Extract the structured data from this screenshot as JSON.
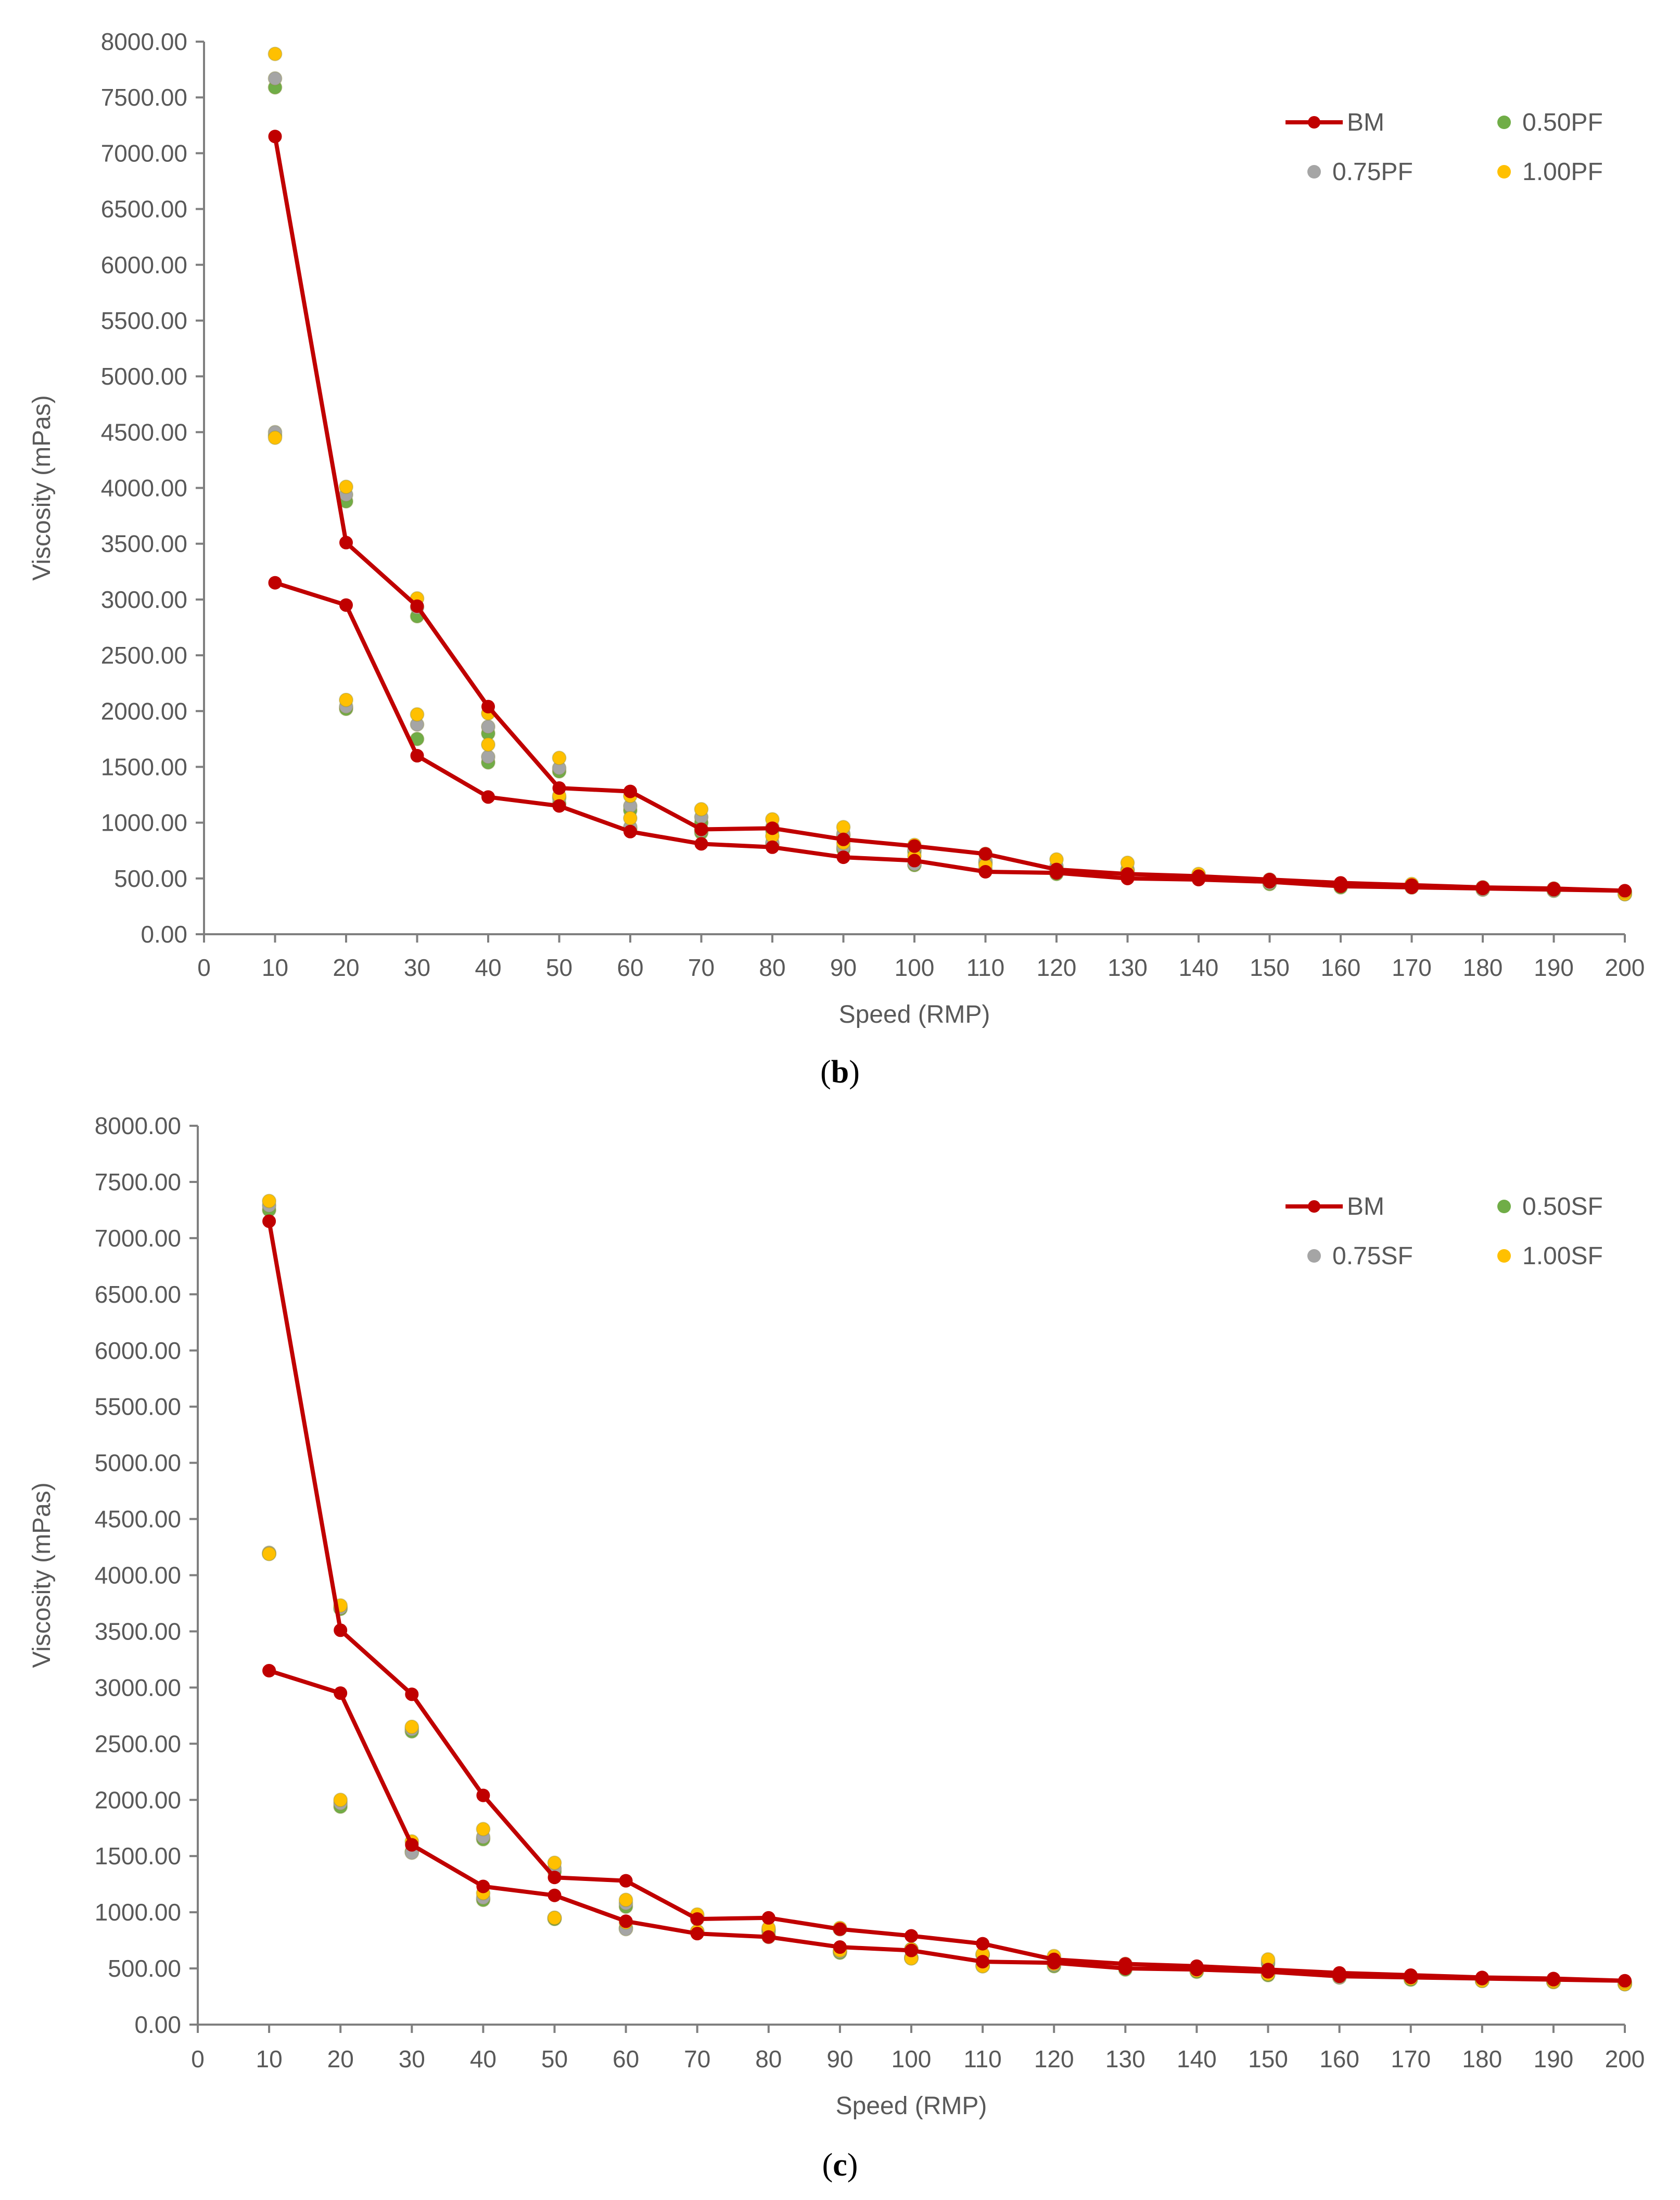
{
  "chart_data": [
    {
      "type": "line",
      "caption_label": "b",
      "title": "",
      "xlabel": "Speed (RMP)",
      "ylabel": "Viscosity (mPas)",
      "xlim": [
        0,
        200
      ],
      "ylim": [
        0,
        8000
      ],
      "x_ticks": [
        "0",
        "10",
        "20",
        "30",
        "40",
        "50",
        "60",
        "70",
        "80",
        "90",
        "100",
        "110",
        "120",
        "130",
        "140",
        "150",
        "160",
        "170",
        "180",
        "190",
        "200"
      ],
      "y_ticks": [
        "0.00",
        "500.00",
        "1000.00",
        "1500.00",
        "2000.00",
        "2500.00",
        "3000.00",
        "3500.00",
        "4000.00",
        "4500.00",
        "5000.00",
        "5500.00",
        "6000.00",
        "6500.00",
        "7000.00",
        "7500.00",
        "8000.00"
      ],
      "legend": [
        "BM",
        "0.50PF",
        "0.75PF",
        "1.00PF"
      ],
      "colors": {
        "BM": "#c00000",
        "0.50PF": "#70ad47",
        "0.75PF": "#a5a5a5",
        "1.00PF": "#ffc000"
      },
      "series": [
        {
          "name": "BM",
          "style": "line",
          "x": [
            10,
            20,
            30,
            40,
            50,
            60,
            70,
            80,
            90,
            100,
            110,
            120,
            130,
            140,
            150,
            160,
            170,
            180,
            190,
            200,
            190,
            180,
            170,
            160,
            150,
            140,
            130,
            120,
            110,
            100,
            90,
            80,
            70,
            60,
            50,
            40,
            30,
            20,
            10
          ],
          "values": [
            7150,
            3510,
            2940,
            2040,
            1310,
            1280,
            940,
            950,
            850,
            790,
            720,
            580,
            540,
            520,
            490,
            460,
            440,
            420,
            410,
            390,
            400,
            410,
            420,
            430,
            470,
            490,
            500,
            550,
            560,
            660,
            690,
            780,
            810,
            920,
            1150,
            1230,
            1600,
            2950,
            3150
          ]
        },
        {
          "name": "0.50PF",
          "style": "marker",
          "x": [
            10,
            10,
            20,
            20,
            30,
            30,
            40,
            40,
            50,
            50,
            60,
            60,
            70,
            70,
            80,
            80,
            90,
            90,
            100,
            100,
            110,
            110,
            120,
            120,
            130,
            130,
            140,
            140,
            150,
            150,
            160,
            160,
            170,
            170,
            180,
            180,
            190,
            190,
            200,
            200
          ],
          "values": [
            7590,
            4470,
            3880,
            2020,
            2850,
            1750,
            1540,
            1800,
            1170,
            1460,
            940,
            1110,
            910,
            1000,
            800,
            930,
            760,
            880,
            620,
            740,
            570,
            640,
            540,
            590,
            520,
            570,
            500,
            520,
            450,
            470,
            420,
            440,
            420,
            440,
            400,
            410,
            390,
            400,
            360,
            380
          ]
        },
        {
          "name": "0.75PF",
          "style": "marker",
          "x": [
            10,
            10,
            20,
            20,
            30,
            30,
            40,
            40,
            50,
            50,
            60,
            60,
            70,
            70,
            80,
            80,
            90,
            90,
            100,
            100,
            110,
            110,
            120,
            120,
            130,
            130,
            140,
            140,
            150,
            150,
            160,
            160,
            170,
            170,
            180,
            180,
            190,
            190,
            200,
            200
          ],
          "values": [
            7670,
            4500,
            3940,
            2040,
            2930,
            1880,
            1590,
            1860,
            1220,
            1490,
            960,
            1150,
            930,
            1050,
            820,
            960,
            780,
            900,
            630,
            760,
            580,
            660,
            550,
            610,
            530,
            580,
            510,
            530,
            460,
            480,
            430,
            450,
            420,
            440,
            400,
            420,
            390,
            400,
            360,
            380
          ]
        },
        {
          "name": "1.00PF",
          "style": "marker",
          "x": [
            10,
            10,
            20,
            20,
            30,
            30,
            40,
            40,
            50,
            50,
            60,
            60,
            70,
            70,
            80,
            80,
            90,
            90,
            100,
            100,
            110,
            110,
            120,
            120,
            130,
            130,
            140,
            140,
            150,
            150,
            160,
            160,
            170,
            170,
            180,
            180,
            190,
            190,
            200,
            200
          ],
          "values": [
            7890,
            4450,
            4010,
            2100,
            3010,
            1970,
            1700,
            1980,
            1240,
            1580,
            1040,
            1240,
            940,
            1120,
            880,
            1030,
            820,
            960,
            700,
            800,
            620,
            720,
            580,
            670,
            560,
            640,
            510,
            540,
            480,
            490,
            440,
            450,
            430,
            450,
            420,
            410,
            400,
            410,
            360,
            380
          ]
        }
      ]
    },
    {
      "type": "line",
      "caption_label": "c",
      "title": "",
      "xlabel": "Speed (RMP)",
      "ylabel": "Viscosity (mPas)",
      "xlim": [
        0,
        200
      ],
      "ylim": [
        0,
        8000
      ],
      "x_ticks": [
        "0",
        "10",
        "20",
        "30",
        "40",
        "50",
        "60",
        "70",
        "80",
        "90",
        "100",
        "110",
        "120",
        "130",
        "140",
        "150",
        "160",
        "170",
        "180",
        "190",
        "200"
      ],
      "y_ticks": [
        "0.00",
        "500.00",
        "1000.00",
        "1500.00",
        "2000.00",
        "2500.00",
        "3000.00",
        "3500.00",
        "4000.00",
        "4500.00",
        "5000.00",
        "5500.00",
        "6000.00",
        "6500.00",
        "7000.00",
        "7500.00",
        "8000.00"
      ],
      "legend": [
        "BM",
        "0.50SF",
        "0.75SF",
        "1.00SF"
      ],
      "colors": {
        "BM": "#c00000",
        "0.50SF": "#70ad47",
        "0.75SF": "#a5a5a5",
        "1.00SF": "#ffc000"
      },
      "series": [
        {
          "name": "BM",
          "style": "line",
          "x": [
            10,
            20,
            30,
            40,
            50,
            60,
            70,
            80,
            90,
            100,
            110,
            120,
            130,
            140,
            150,
            160,
            170,
            180,
            190,
            200,
            190,
            180,
            170,
            160,
            150,
            140,
            130,
            120,
            110,
            100,
            90,
            80,
            70,
            60,
            50,
            40,
            30,
            20,
            10
          ],
          "values": [
            7150,
            3510,
            2940,
            2040,
            1310,
            1280,
            940,
            950,
            850,
            790,
            720,
            580,
            540,
            520,
            490,
            460,
            440,
            420,
            410,
            390,
            400,
            410,
            420,
            430,
            470,
            490,
            500,
            550,
            560,
            660,
            690,
            780,
            810,
            920,
            1150,
            1230,
            1600,
            2950,
            3150
          ]
        },
        {
          "name": "0.50SF",
          "style": "marker",
          "x": [
            10,
            10,
            20,
            20,
            30,
            30,
            40,
            40,
            50,
            50,
            60,
            60,
            70,
            70,
            80,
            80,
            90,
            90,
            100,
            100,
            110,
            110,
            120,
            120,
            130,
            130,
            140,
            140,
            150,
            150,
            160,
            160,
            170,
            170,
            180,
            180,
            190,
            190,
            200,
            200
          ],
          "values": [
            7250,
            4190,
            3700,
            1940,
            2610,
            1540,
            1110,
            1650,
            940,
            1360,
            860,
            1050,
            820,
            940,
            780,
            830,
            640,
            850,
            590,
            670,
            520,
            620,
            520,
            580,
            490,
            520,
            470,
            490,
            440,
            540,
            420,
            440,
            400,
            420,
            390,
            400,
            380,
            390,
            360,
            370
          ]
        },
        {
          "name": "0.75SF",
          "style": "marker",
          "x": [
            10,
            10,
            20,
            20,
            30,
            30,
            40,
            40,
            50,
            50,
            60,
            60,
            70,
            70,
            80,
            80,
            90,
            90,
            100,
            100,
            110,
            110,
            120,
            120,
            130,
            130,
            140,
            140,
            150,
            150,
            160,
            160,
            170,
            170,
            180,
            180,
            190,
            190,
            200,
            200
          ],
          "values": [
            7290,
            4200,
            3710,
            1970,
            2630,
            1530,
            1130,
            1670,
            950,
            1390,
            850,
            1080,
            830,
            960,
            790,
            840,
            650,
            850,
            600,
            670,
            530,
            620,
            530,
            590,
            500,
            530,
            480,
            500,
            450,
            560,
            420,
            450,
            410,
            430,
            390,
            400,
            380,
            390,
            360,
            370
          ]
        },
        {
          "name": "1.00SF",
          "style": "marker",
          "x": [
            10,
            10,
            20,
            20,
            30,
            30,
            40,
            40,
            50,
            50,
            60,
            60,
            70,
            70,
            80,
            80,
            90,
            90,
            100,
            100,
            110,
            110,
            120,
            120,
            130,
            130,
            140,
            140,
            150,
            150,
            160,
            160,
            170,
            170,
            180,
            180,
            190,
            190,
            200,
            200
          ],
          "values": [
            7330,
            4190,
            3730,
            2000,
            2650,
            1630,
            1170,
            1740,
            950,
            1440,
            910,
            1110,
            830,
            980,
            790,
            860,
            660,
            860,
            590,
            670,
            520,
            630,
            540,
            610,
            510,
            540,
            480,
            510,
            450,
            580,
            430,
            450,
            410,
            430,
            390,
            410,
            380,
            390,
            360,
            380
          ]
        }
      ]
    }
  ]
}
